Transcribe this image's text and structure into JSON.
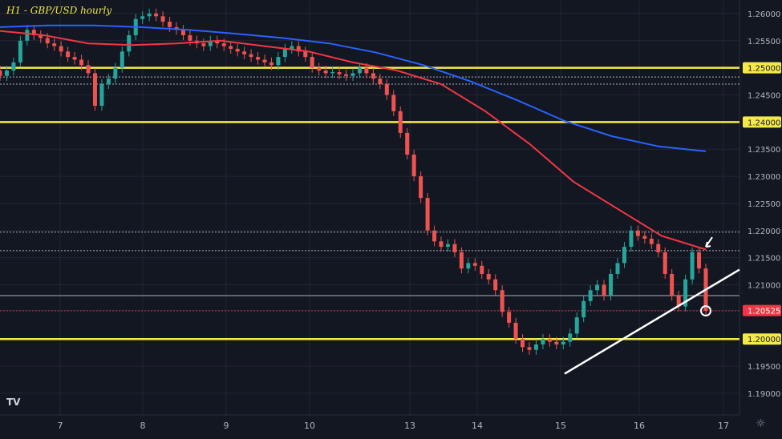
{
  "chart_data": {
    "type": "line",
    "title": "H1 - GBP/USD hourly",
    "x_ticks": [
      "7",
      "8",
      "9",
      "10",
      "13",
      "14",
      "15",
      "16",
      "17"
    ],
    "y_ticks": [
      "1.26000",
      "1.25500",
      "1.25000",
      "1.24500",
      "1.24000",
      "1.23500",
      "1.23000",
      "1.22500",
      "1.22000",
      "1.21500",
      "1.21000",
      "1.20525",
      "1.20000",
      "1.19500",
      "1.19000"
    ],
    "ylim": [
      1.186,
      1.2625
    ],
    "current_price": "1.20525",
    "highlighted_levels": [
      1.25,
      1.24,
      1.2
    ],
    "series": [
      {
        "type": "candlestick",
        "close": [
          1.2485,
          1.2495,
          1.251,
          1.255,
          1.257,
          1.256,
          1.2555,
          1.2545,
          1.254,
          1.253,
          1.252,
          1.2515,
          1.2505,
          1.249,
          1.243,
          1.247,
          1.248,
          1.25,
          1.253,
          1.256,
          1.259,
          1.2595,
          1.26,
          1.2595,
          1.2585,
          1.2575,
          1.257,
          1.256,
          1.255,
          1.2545,
          1.254,
          1.255,
          1.2545,
          1.254,
          1.2535,
          1.253,
          1.2525,
          1.252,
          1.2515,
          1.251,
          1.2505,
          1.252,
          1.2535,
          1.254,
          1.253,
          1.252,
          1.25,
          1.2495,
          1.249,
          1.2492,
          1.2488,
          1.2485,
          1.249,
          1.25,
          1.249,
          1.248,
          1.247,
          1.245,
          1.242,
          1.238,
          1.234,
          1.23,
          1.226,
          1.22,
          1.218,
          1.217,
          1.2175,
          1.216,
          1.213,
          1.214,
          1.2135,
          1.212,
          1.211,
          1.209,
          1.205,
          1.203,
          1.2,
          1.1985,
          1.198,
          1.199,
          1.2,
          1.1995,
          1.199,
          1.1995,
          1.201,
          1.204,
          1.207,
          1.209,
          1.21,
          1.208,
          1.212,
          1.214,
          1.217,
          1.22,
          1.219,
          1.2185,
          1.2175,
          1.216,
          1.212,
          1.208,
          1.206,
          1.211,
          1.216,
          1.213,
          1.2052
        ]
      },
      {
        "name": "",
        "color": "#2962ff",
        "values": [
          1.2575,
          1.2578,
          1.2578,
          1.2575,
          1.257,
          1.2563,
          1.2555,
          1.2545,
          1.2528,
          1.2505,
          1.2475,
          1.244,
          1.2402,
          1.2374,
          1.2355,
          1.2346
        ]
      },
      {
        "name": "",
        "color": "#f23645",
        "values": [
          1.2568,
          1.256,
          1.2545,
          1.2542,
          1.2545,
          1.255,
          1.254,
          1.253,
          1.251,
          1.2495,
          1.247,
          1.242,
          1.236,
          1.229,
          1.224,
          1.219,
          1.2165
        ]
      }
    ],
    "annotations": [
      {
        "type": "trendline",
        "from": [
          15.05,
          1.1936
        ],
        "to": [
          17.2,
          1.2128
        ]
      },
      {
        "type": "horizontal",
        "y": 1.2197,
        "style": "dotted"
      },
      {
        "type": "horizontal",
        "y": 1.2163,
        "style": "dotted"
      },
      {
        "type": "horizontal",
        "y": 1.208,
        "style": "solid"
      },
      {
        "type": "horizontal",
        "y": 1.2052,
        "style": "dotted"
      },
      {
        "type": "horizontal",
        "y": 1.2483,
        "style": "dotted"
      },
      {
        "type": "horizontal",
        "y": 1.247,
        "style": "dotted"
      }
    ]
  },
  "ui": {
    "title": "H1 - GBP/USD hourly",
    "logo": "TV",
    "settings_icon": "☼"
  }
}
